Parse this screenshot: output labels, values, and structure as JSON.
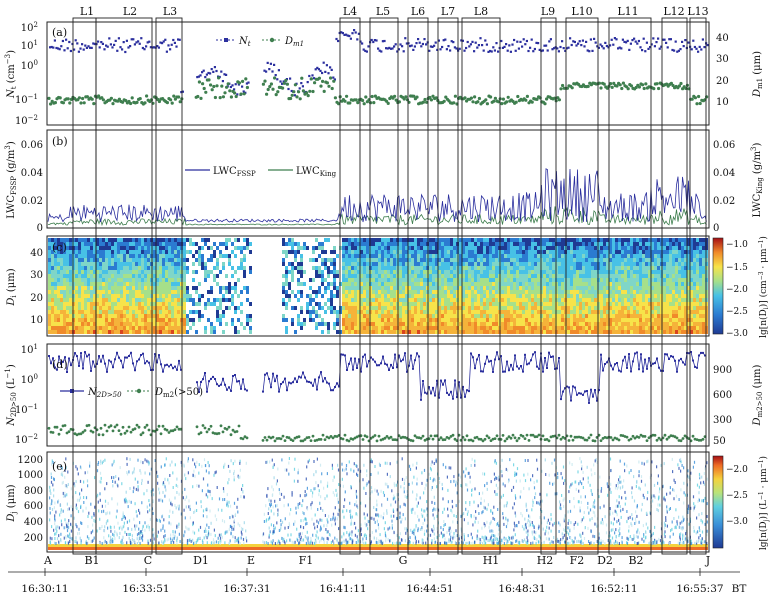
{
  "figure": {
    "type": "multi-panel time series with size-distribution heatmaps",
    "time_axis": {
      "label_suffix": "BT",
      "ticks": [
        "16:30:11",
        "16:33:51",
        "16:37:31",
        "16:41:11",
        "16:44:51",
        "16:48:31",
        "16:52:11",
        "16:55:37"
      ]
    },
    "layers_top": [
      "L1",
      "L2",
      "L3",
      "L4",
      "L5",
      "L6",
      "L7",
      "L8",
      "L9",
      "L10",
      "L11",
      "L12",
      "L13"
    ],
    "points_bottom": [
      "A",
      "B1",
      "C",
      "D1",
      "E",
      "F1",
      "G",
      "H1",
      "H2",
      "F2",
      "D2",
      "B2",
      "J"
    ]
  },
  "chart_data": [
    {
      "panel": "(a)",
      "type": "scatter",
      "ylabel_left": "N_t (cm^-3)",
      "ylabel_right": "D_m1 (μm)",
      "yscale_left": "log",
      "yticks_left": [
        "10^-2",
        "10^-1",
        "10^0",
        "10^1",
        "10^2"
      ],
      "yticks_right": [
        "10",
        "20",
        "30",
        "40"
      ],
      "series": [
        {
          "name": "N_t",
          "color": "#2b2f9e",
          "marker": "square"
        },
        {
          "name": "D_m1",
          "color": "#3f7f4f",
          "marker": "circle"
        }
      ]
    },
    {
      "panel": "(b)",
      "type": "line",
      "ylabel_left": "LWC_FSSP (g/m^3)",
      "ylabel_right": "LWC_King (g/m^3)",
      "ylim": [
        0,
        0.07
      ],
      "yticks": [
        "0",
        "0.02",
        "0.04",
        "0.06"
      ],
      "series": [
        {
          "name": "LWC_FSSP",
          "color": "#2b2f9e"
        },
        {
          "name": "LWC_King",
          "color": "#3f7f4f"
        }
      ]
    },
    {
      "panel": "(c)",
      "type": "heatmap",
      "ylabel": "D_i (μm)",
      "ylim": [
        2,
        47
      ],
      "yticks": [
        "10",
        "20",
        "30",
        "40"
      ],
      "colorbar_label": "lg[n(D_i)] (cm^-3·μm^-1)",
      "colorbar_range": [
        -3.0,
        -0.9
      ],
      "colorbar_ticks": [
        "-1.0",
        "-1.5",
        "-2.0",
        "-2.5",
        "-3.0"
      ]
    },
    {
      "panel": "(d)",
      "type": "scatter",
      "ylabel_left": "N_2D>50 (L^-1)",
      "ylabel_right": "D_m2>50 (μm)",
      "yscale_left": "log",
      "yticks_left": [
        "10^-2",
        "10^-1",
        "10^0",
        "10^1"
      ],
      "yticks_right": [
        "50",
        "300",
        "600",
        "900"
      ],
      "series": [
        {
          "name": "N_2D>50",
          "color": "#2b2f9e",
          "marker": "square"
        },
        {
          "name": "D_m2(>50)",
          "color": "#3f7f4f",
          "marker": "circle"
        }
      ]
    },
    {
      "panel": "(e)",
      "type": "heatmap",
      "ylabel": "D_j (μm)",
      "ylim": [
        0,
        1300
      ],
      "yticks": [
        "200",
        "400",
        "600",
        "800",
        "1000",
        "1200"
      ],
      "colorbar_label": "lg[n(D_j)] (L^-1·μm^-1)",
      "colorbar_range": [
        -3.3,
        -1.8
      ],
      "colorbar_ticks": [
        "-2.0",
        "-2.5",
        "-3.0"
      ]
    }
  ],
  "labels": {
    "a": {
      "panel": "(a)",
      "leg1": "N",
      "leg1_sub": "t",
      "leg2": "D",
      "leg2_sub": "m1",
      "yl_main": "N",
      "yl_sub": "t",
      "yl_unit": " (cm",
      "yl_sup": "−3",
      "yl_end": ")",
      "yr_main": "D",
      "yr_sub": "m1",
      "yr_unit": " (μm)",
      "t0": "10",
      "s0": "−2",
      "t1": "10",
      "s1": "−1",
      "t2": "10",
      "s2": "0",
      "t3": "10",
      "s3": "1",
      "t4": "10",
      "s4": "2",
      "r0": "10",
      "r1": "20",
      "r2": "30",
      "r3": "40"
    },
    "b": {
      "panel": "(b)",
      "leg1": "LWC",
      "leg1_sub": "FSSP",
      "leg2": "LWC",
      "leg2_sub": "King",
      "yl_main": "LWC",
      "yl_sub": "FSSP",
      "yl_unit": " (g/m",
      "yl_sup": "3",
      "yl_end": ")",
      "yr_main": "LWC",
      "yr_sub": "King",
      "yr_unit": " (g/m",
      "yr_sup": "3",
      "yr_end": ")",
      "t0": "0",
      "t1": "0.02",
      "t2": "0.04",
      "t3": "0.06",
      "r0": "0",
      "r1": "0.02",
      "r2": "0.04",
      "r3": "0.06"
    },
    "c": {
      "panel": "(c)",
      "yl_main": "D",
      "yl_sub": "i",
      "yl_unit": " (μm)",
      "t0": "10",
      "t1": "20",
      "t2": "30",
      "t3": "40",
      "cb_a": "lg[n(D",
      "cb_sub": "i",
      "cb_b": ")] (cm",
      "cb_sup1": "−3",
      "cb_c": " · μm",
      "cb_sup2": "−1",
      "cb_d": ")",
      "c0": "−1.0",
      "c1": "−1.5",
      "c2": "−2.0",
      "c3": "−2.5",
      "c4": "−3.0"
    },
    "d": {
      "panel": "(d)",
      "leg1": "N",
      "leg1_sub": "2D>50",
      "leg2": "D",
      "leg2_sub": "m2",
      "leg2_end": "(>50)",
      "yl_main": "N",
      "yl_sub": "2D>50",
      "yl_unit": " (L",
      "yl_sup": "−1",
      "yl_end": ")",
      "yr_main": "D",
      "yr_sub": "m2>50",
      "yr_unit": " (μm)",
      "t0": "10",
      "s0": "−2",
      "t1": "10",
      "s1": "−1",
      "t2": "10",
      "s2": "0",
      "t3": "10",
      "s3": "1",
      "r0": "50",
      "r1": "300",
      "r2": "600",
      "r3": "900"
    },
    "e": {
      "panel": "(e)",
      "yl_main": "D",
      "yl_sub": "j",
      "yl_unit": " (μm)",
      "t0": "200",
      "t1": "400",
      "t2": "600",
      "t3": "800",
      "t4": "1000",
      "t5": "1200",
      "cb_a": "lg[n(D",
      "cb_sub": "j",
      "cb_b": ")] (L",
      "cb_sup1": "−1",
      "cb_c": " · μm",
      "cb_sup2": "−1",
      "cb_d": ")",
      "c0": "−2.0",
      "c1": "−2.5",
      "c2": "−3.0"
    }
  },
  "colors": {
    "series_blue": "#2b2f9e",
    "series_green": "#3f7f4f",
    "jet_low": "#1f3a93",
    "jet_high": "#a50f15"
  }
}
